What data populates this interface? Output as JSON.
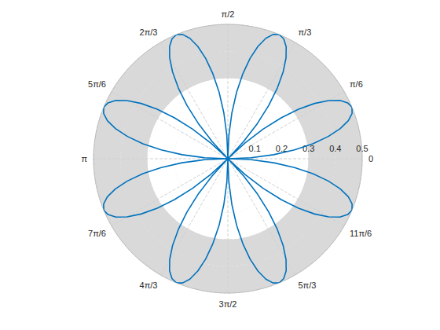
{
  "chart_data": {
    "type": "polar_line",
    "color": "#0072bd",
    "grid": true,
    "xlim": [
      0,
      6.2832
    ],
    "xticks": [
      {
        "value": 0,
        "label": "0"
      },
      {
        "value": 0.5236,
        "label": "π/6"
      },
      {
        "value": 1.0472,
        "label": "π/3"
      },
      {
        "value": 1.5708,
        "label": "π/2"
      },
      {
        "value": 2.0944,
        "label": "2π/3"
      },
      {
        "value": 2.618,
        "label": "5π/6"
      },
      {
        "value": 3.1416,
        "label": "π"
      },
      {
        "value": 3.6652,
        "label": "7π/6"
      },
      {
        "value": 4.1888,
        "label": "4π/3"
      },
      {
        "value": 4.7124,
        "label": "3π/2"
      },
      {
        "value": 5.236,
        "label": "5π/3"
      },
      {
        "value": 5.7596,
        "label": "11π/6"
      }
    ],
    "ylim": [
      0,
      0.5
    ],
    "yticks": [
      0.1,
      0.2,
      0.3,
      0.4,
      0.5
    ],
    "highlight": [
      0.3,
      0.5
    ],
    "x": [
      0,
      0.0436,
      0.0873,
      0.1309,
      0.1745,
      0.2182,
      0.2618,
      0.3054,
      0.3491,
      0.3927,
      0.4363,
      0.48,
      0.5236,
      0.5672,
      0.6109,
      0.6545,
      0.6981,
      0.7418,
      0.7854,
      0.829,
      0.8727,
      0.9163,
      0.9599,
      1.0036,
      1.0472,
      1.0908,
      1.1345,
      1.1781,
      1.2217,
      1.2654,
      1.309,
      1.3526,
      1.3963,
      1.4399,
      1.4835,
      1.5272,
      1.5708,
      1.6144,
      1.6581,
      1.7017,
      1.7453,
      1.789,
      1.8326,
      1.8762,
      1.9199,
      1.9635,
      2.0071,
      2.0508,
      2.0944,
      2.138,
      2.1817,
      2.2253,
      2.2689,
      2.3126,
      2.3562,
      2.3998,
      2.4435,
      2.4871,
      2.5307,
      2.5744,
      2.618,
      2.6616,
      2.7053,
      2.7489,
      2.7925,
      2.8362,
      2.8798,
      2.9234,
      2.9671,
      3.0107,
      3.0543,
      3.098,
      3.1416,
      3.1852,
      3.2289,
      3.2725,
      3.3161,
      3.3598,
      3.4034,
      3.447,
      3.4907,
      3.5343,
      3.5779,
      3.6216,
      3.6652,
      3.7088,
      3.7525,
      3.7961,
      3.8397,
      3.8834,
      3.927,
      3.9706,
      4.0143,
      4.0579,
      4.1015,
      4.1452,
      4.1888,
      4.2324,
      4.2761,
      4.3197,
      4.3633,
      4.407,
      4.4506,
      4.4942,
      4.5379,
      4.5815,
      4.6251,
      4.6688,
      4.7124,
      4.756,
      4.7997,
      4.8433,
      4.8869,
      4.9306,
      4.9742,
      5.0178,
      5.0615,
      5.1051,
      5.1487,
      5.1924,
      5.236,
      5.2796,
      5.3233,
      5.3669,
      5.4105,
      5.4542,
      5.4978,
      5.5414,
      5.5851,
      5.6287,
      5.6723,
      5.716,
      5.7596,
      5.8032,
      5.8469,
      5.8905,
      5.9341,
      5.9778,
      6.0214,
      6.065,
      6.1087,
      6.1523,
      6.1959,
      6.2396,
      6.2832
    ],
    "values": [
      0,
      0.087,
      0.171,
      0.25,
      0.321,
      0.383,
      0.433,
      0.47,
      0.492,
      0.5,
      0.492,
      0.47,
      0.433,
      0.383,
      0.321,
      0.25,
      0.171,
      0.087,
      0,
      0.087,
      0.171,
      0.25,
      0.321,
      0.383,
      0.433,
      0.47,
      0.492,
      0.5,
      0.492,
      0.47,
      0.433,
      0.383,
      0.321,
      0.25,
      0.171,
      0.087,
      0,
      0.087,
      0.171,
      0.25,
      0.321,
      0.383,
      0.433,
      0.47,
      0.492,
      0.5,
      0.492,
      0.47,
      0.433,
      0.383,
      0.321,
      0.25,
      0.171,
      0.087,
      0,
      0.087,
      0.171,
      0.25,
      0.321,
      0.383,
      0.433,
      0.47,
      0.492,
      0.5,
      0.492,
      0.47,
      0.433,
      0.383,
      0.321,
      0.25,
      0.171,
      0.087,
      0,
      0.087,
      0.171,
      0.25,
      0.321,
      0.383,
      0.433,
      0.47,
      0.492,
      0.5,
      0.492,
      0.47,
      0.433,
      0.383,
      0.321,
      0.25,
      0.171,
      0.087,
      0,
      0.087,
      0.171,
      0.25,
      0.321,
      0.383,
      0.433,
      0.47,
      0.492,
      0.5,
      0.492,
      0.47,
      0.433,
      0.383,
      0.321,
      0.25,
      0.171,
      0.087,
      0,
      0.087,
      0.171,
      0.25,
      0.321,
      0.383,
      0.433,
      0.47,
      0.492,
      0.5,
      0.492,
      0.47,
      0.433,
      0.383,
      0.321,
      0.25,
      0.171,
      0.087,
      0,
      0.087,
      0.171,
      0.25,
      0.321,
      0.383,
      0.433,
      0.47,
      0.492,
      0.5,
      0.492,
      0.47,
      0.433,
      0.383,
      0.321,
      0.25,
      0.171,
      0.087,
      0
    ]
  }
}
